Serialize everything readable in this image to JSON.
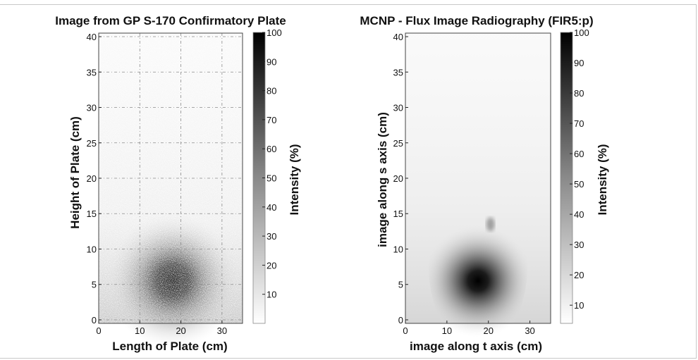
{
  "chart_data": [
    {
      "type": "heatmap",
      "title": "Image from GP S-170 Confirmatory Plate",
      "xlabel": "Length of Plate (cm)",
      "ylabel": "Height of Plate (cm)",
      "xlim": [
        0,
        35
      ],
      "ylim": [
        -0.5,
        40.5
      ],
      "xticks": [
        "0",
        "10",
        "20",
        "30"
      ],
      "yticks": [
        "0",
        "5",
        "10",
        "15",
        "20",
        "25",
        "30",
        "35",
        "40"
      ],
      "grid": true,
      "colorbar": {
        "label": "Intensity (%)",
        "range": [
          0,
          100
        ],
        "ticks": [
          "10",
          "20",
          "30",
          "40",
          "50",
          "60",
          "70",
          "80",
          "90",
          "100"
        ]
      },
      "hotspot": {
        "x": 18,
        "y": 5.5,
        "peak": 90
      },
      "texture": "noisy"
    },
    {
      "type": "heatmap",
      "title": "MCNP - Flux Image Radiography (FIR5:p)",
      "xlabel": "image along t axis (cm)",
      "ylabel": "image along s axis (cm)",
      "xlim": [
        0,
        35
      ],
      "ylim": [
        -0.5,
        40.5
      ],
      "xticks": [
        "0",
        "10",
        "20",
        "30"
      ],
      "yticks": [
        "0",
        "5",
        "10",
        "15",
        "20",
        "25",
        "30",
        "35",
        "40"
      ],
      "grid": false,
      "colorbar": {
        "label": "Intensity (%)",
        "range": [
          4,
          100
        ],
        "ticks": [
          "10",
          "20",
          "30",
          "40",
          "50",
          "60",
          "70",
          "80",
          "90",
          "100"
        ]
      },
      "hotspot": {
        "x": 17.5,
        "y": 5.5,
        "peak": 100
      },
      "texture": "smooth"
    }
  ]
}
